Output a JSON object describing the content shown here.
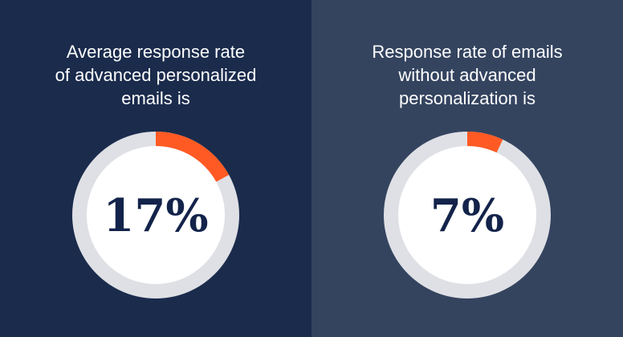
{
  "colors": {
    "ring_track": "#dfe0e5",
    "ring_fill": "#ff5a23",
    "inner": "#ffffff",
    "value_text": "#13234a"
  },
  "chart_data": [
    {
      "type": "pie",
      "caption_lines": [
        "Average response rate",
        "of advanced personalized",
        "emails is"
      ],
      "value": 17,
      "value_label": "17%",
      "max": 100
    },
    {
      "type": "pie",
      "caption_lines": [
        "Response rate of emails",
        "without advanced",
        "personalization is"
      ],
      "value": 7,
      "value_label": "7%",
      "max": 100
    }
  ]
}
